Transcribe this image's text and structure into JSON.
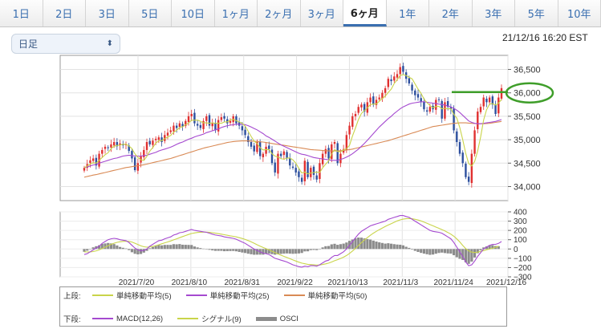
{
  "tabs": [
    {
      "label": "1日",
      "active": false
    },
    {
      "label": "2日",
      "active": false
    },
    {
      "label": "3日",
      "active": false
    },
    {
      "label": "5日",
      "active": false
    },
    {
      "label": "10日",
      "active": false
    },
    {
      "label": "1ヶ月",
      "active": false
    },
    {
      "label": "2ヶ月",
      "active": false
    },
    {
      "label": "3ヶ月",
      "active": false
    },
    {
      "label": "6ヶ月",
      "active": true
    },
    {
      "label": "1年",
      "active": false
    },
    {
      "label": "2年",
      "active": false
    },
    {
      "label": "3年",
      "active": false
    },
    {
      "label": "5年",
      "active": false
    },
    {
      "label": "10年",
      "active": false
    }
  ],
  "period_select": {
    "value": "日足",
    "icon": "updown-chevron-icon"
  },
  "timestamp": "21/12/16 16:20 EST",
  "chart_data": {
    "type": "candlestick",
    "price_axis": {
      "ticks": [
        "36,500",
        "36,000",
        "35,500",
        "35,000",
        "34,500",
        "34,000"
      ],
      "tick_values": [
        36500,
        36000,
        35500,
        35000,
        34500,
        34000
      ],
      "range": [
        33700,
        36800
      ]
    },
    "osc_axis": {
      "ticks": [
        "400",
        "300",
        "200",
        "100",
        "0",
        "−100",
        "−200",
        "−300"
      ],
      "tick_values": [
        400,
        300,
        200,
        100,
        0,
        -100,
        -200,
        -300
      ],
      "range": [
        -300,
        400
      ]
    },
    "x_labels": [
      "2021/7/20",
      "2021/8/10",
      "2021/8/31",
      "2021/9/22",
      "2021/10/13",
      "2021/11/3",
      "2021/11/24",
      "2021/12/16"
    ],
    "colors": {
      "up": "#e03030",
      "down": "#2d4f9e",
      "ma5": "#c9d44a",
      "ma25": "#a54ad0",
      "ma50": "#d98a55",
      "macd": "#a54ad0",
      "signal": "#c9d44a",
      "osci": "#8c8c8c",
      "highlight": "#3f9e2a"
    },
    "close": [
      34400,
      34480,
      34560,
      34600,
      34450,
      34700,
      34780,
      34850,
      34820,
      34900,
      34950,
      34860,
      34920,
      34880,
      34900,
      34760,
      34600,
      34350,
      34500,
      34650,
      34780,
      34950,
      34900,
      34980,
      35020,
      35050,
      34950,
      35100,
      35150,
      35200,
      35300,
      35250,
      35350,
      35280,
      35400,
      35500,
      35550,
      35350,
      35300,
      35250,
      35400,
      35500,
      35300,
      35350,
      35200,
      35420,
      35480,
      35450,
      35350,
      35400,
      35500,
      35350,
      35300,
      35200,
      35100,
      34950,
      34850,
      34750,
      34950,
      34650,
      34700,
      34850,
      34800,
      34500,
      34300,
      34700,
      34650,
      34750,
      34600,
      34450,
      34400,
      34300,
      34200,
      34100,
      34550,
      34200,
      34400,
      34250,
      34150,
      34500,
      34700,
      34800,
      34600,
      34900,
      34950,
      34500,
      34700,
      34800,
      35100,
      35300,
      35500,
      35550,
      35700,
      35750,
      35600,
      35800,
      35900,
      35750,
      35850,
      35900,
      36000,
      36100,
      36300,
      36250,
      36350,
      36400,
      36550,
      36450,
      36300,
      36200,
      36050,
      35950,
      35900,
      35800,
      35650,
      35600,
      35700,
      35650,
      35850,
      35850,
      35450,
      35800,
      35700,
      35650,
      35200,
      34950,
      34700,
      34500,
      34200,
      34100,
      34700,
      35200,
      35600,
      35700,
      35900,
      35800,
      35900,
      35750,
      35550,
      35900,
      36100
    ],
    "ma5": [
      34400,
      34440,
      34480,
      34510,
      34500,
      34560,
      34620,
      34680,
      34720,
      34810,
      34860,
      34876,
      34886,
      34902,
      34904,
      34864,
      34812,
      34700,
      34622,
      34572,
      34556,
      34646,
      34756,
      34832,
      34926,
      34980,
      34980,
      35024,
      35054,
      35090,
      35160,
      35200,
      35260,
      35276,
      35316,
      35356,
      35416,
      35416,
      35420,
      35390,
      35360,
      35360,
      35350,
      35360,
      35350,
      35354,
      35350,
      35380,
      35380,
      35420,
      35436,
      35410,
      35380,
      35350,
      35290,
      35180,
      35070,
      34970,
      34920,
      34830,
      34780,
      34790,
      34790,
      34700,
      34650,
      34630,
      34600,
      34580,
      34610,
      34610,
      34570,
      34500,
      34390,
      34290,
      34310,
      34270,
      34290,
      34300,
      34310,
      34300,
      34400,
      34480,
      34550,
      34700,
      34790,
      34750,
      34740,
      34780,
      34810,
      34880,
      35080,
      35250,
      35430,
      35560,
      35620,
      35680,
      35750,
      35760,
      35760,
      35820,
      35880,
      35930,
      36010,
      36080,
      36200,
      36280,
      36370,
      36390,
      36370,
      36330,
      36300,
      36190,
      36080,
      35990,
      35870,
      35790,
      35730,
      35680,
      35710,
      35710,
      35660,
      35670,
      35660,
      35660,
      35540,
      35460,
      35260,
      35000,
      34710,
      34490,
      34440,
      34540,
      34760,
      35060,
      35420,
      35640,
      35760,
      35770,
      35740,
      35780,
      35860
    ],
    "ma25": [
      34400,
      34420,
      34440,
      34460,
      34470,
      34500,
      34520,
      34540,
      34560,
      34580,
      34600,
      34610,
      34630,
      34650,
      34660,
      34670,
      34660,
      34650,
      34650,
      34650,
      34660,
      34670,
      34690,
      34710,
      34730,
      34760,
      34780,
      34800,
      34820,
      34840,
      34870,
      34900,
      34930,
      34950,
      34980,
      35010,
      35030,
      35060,
      35080,
      35100,
      35120,
      35150,
      35170,
      35190,
      35210,
      35230,
      35260,
      35280,
      35300,
      35310,
      35320,
      35330,
      35330,
      35330,
      35320,
      35300,
      35270,
      35240,
      35210,
      35170,
      35130,
      35080,
      35050,
      35010,
      34970,
      34930,
      34890,
      34860,
      34830,
      34800,
      34770,
      34740,
      34710,
      34690,
      34680,
      34660,
      34640,
      34620,
      34610,
      34600,
      34590,
      34580,
      34570,
      34560,
      34560,
      34560,
      34580,
      34600,
      34630,
      34660,
      34700,
      34750,
      34800,
      34860,
      34920,
      34990,
      35060,
      35130,
      35200,
      35270,
      35330,
      35390,
      35450,
      35500,
      35560,
      35610,
      35660,
      35700,
      35730,
      35760,
      35780,
      35790,
      35800,
      35810,
      35810,
      35800,
      35790,
      35780,
      35770,
      35760,
      35750,
      35740,
      35720,
      35700,
      35670,
      35630,
      35580,
      35520,
      35460,
      35400,
      35370,
      35350,
      35340,
      35340,
      35350,
      35360,
      35370,
      35380,
      35390,
      35410,
      35430
    ],
    "ma50": [
      34200,
      34215,
      34230,
      34245,
      34255,
      34270,
      34285,
      34300,
      34315,
      34330,
      34345,
      34360,
      34375,
      34390,
      34405,
      34415,
      34425,
      34435,
      34445,
      34455,
      34465,
      34480,
      34495,
      34510,
      34525,
      34540,
      34555,
      34570,
      34585,
      34600,
      34620,
      34640,
      34660,
      34680,
      34700,
      34720,
      34740,
      34760,
      34780,
      34800,
      34820,
      34835,
      34850,
      34865,
      34880,
      34895,
      34910,
      34925,
      34940,
      34950,
      34960,
      34965,
      34970,
      34975,
      34975,
      34975,
      34970,
      34965,
      34960,
      34955,
      34950,
      34940,
      34930,
      34920,
      34910,
      34900,
      34890,
      34880,
      34870,
      34860,
      34850,
      34840,
      34830,
      34820,
      34810,
      34800,
      34790,
      34785,
      34780,
      34775,
      34770,
      34765,
      34760,
      34760,
      34760,
      34760,
      34765,
      34770,
      34780,
      34790,
      34800,
      34815,
      34830,
      34845,
      34860,
      34875,
      34890,
      34905,
      34920,
      34935,
      34950,
      34965,
      34980,
      35000,
      35020,
      35040,
      35060,
      35080,
      35100,
      35120,
      35140,
      35160,
      35180,
      35200,
      35220,
      35240,
      35260,
      35280,
      35290,
      35300,
      35310,
      35320,
      35330,
      35340,
      35350,
      35355,
      35360,
      35360,
      35360,
      35355,
      35350,
      35345,
      35340,
      35340,
      35340,
      35345,
      35350,
      35360,
      35370,
      35380,
      35390
    ],
    "macd": [
      -60,
      -50,
      -30,
      -10,
      10,
      30,
      60,
      80,
      100,
      110,
      115,
      110,
      100,
      95,
      90,
      70,
      40,
      10,
      -10,
      -20,
      -15,
      0,
      30,
      50,
      70,
      90,
      95,
      110,
      120,
      130,
      150,
      160,
      175,
      180,
      190,
      200,
      210,
      200,
      195,
      190,
      185,
      180,
      170,
      160,
      150,
      145,
      140,
      130,
      125,
      120,
      115,
      105,
      90,
      75,
      60,
      40,
      20,
      0,
      -15,
      -30,
      -45,
      -50,
      -60,
      -80,
      -100,
      -110,
      -120,
      -130,
      -140,
      -155,
      -170,
      -180,
      -190,
      -195,
      -185,
      -190,
      -180,
      -180,
      -185,
      -170,
      -150,
      -130,
      -120,
      -90,
      -70,
      -70,
      -50,
      -30,
      0,
      40,
      80,
      120,
      160,
      190,
      210,
      230,
      250,
      260,
      270,
      280,
      290,
      300,
      320,
      330,
      340,
      350,
      360,
      360,
      350,
      340,
      320,
      300,
      280,
      260,
      240,
      220,
      200,
      190,
      185,
      180,
      170,
      150,
      130,
      110,
      70,
      20,
      -30,
      -80,
      -140,
      -180,
      -170,
      -130,
      -80,
      -40,
      0,
      20,
      40,
      50,
      50,
      60,
      80
    ],
    "signal": [
      -30,
      -32,
      -32,
      -28,
      -20,
      -10,
      5,
      20,
      35,
      50,
      62,
      72,
      78,
      82,
      84,
      82,
      75,
      62,
      48,
      34,
      24,
      20,
      22,
      28,
      36,
      46,
      56,
      66,
      76,
      86,
      98,
      110,
      122,
      134,
      145,
      156,
      167,
      173,
      178,
      180,
      181,
      181,
      179,
      175,
      170,
      165,
      160,
      154,
      148,
      142,
      136,
      130,
      122,
      113,
      103,
      91,
      77,
      62,
      46,
      31,
      16,
      3,
      -10,
      -24,
      -39,
      -53,
      -67,
      -80,
      -92,
      -105,
      -118,
      -130,
      -142,
      -152,
      -159,
      -165,
      -168,
      -170,
      -173,
      -172,
      -167,
      -160,
      -152,
      -140,
      -126,
      -115,
      -102,
      -88,
      -70,
      -48,
      -22,
      6,
      37,
      68,
      96,
      123,
      148,
      170,
      190,
      208,
      225,
      242,
      258,
      273,
      288,
      302,
      314,
      321,
      326,
      328,
      326,
      320,
      312,
      302,
      290,
      277,
      263,
      250,
      236,
      223,
      209,
      194,
      178,
      160,
      137,
      109,
      76,
      38,
      4,
      -20,
      -34,
      -38,
      -34,
      -26,
      -17,
      -8,
      0,
      8,
      18,
      30
    ],
    "osci_note": "MACD minus signal"
  },
  "legend": {
    "upper_label": "上段:",
    "lower_label": "下段:",
    "upper_items": [
      {
        "label": "単純移動平均(5)",
        "color": "#c9d44a"
      },
      {
        "label": "単純移動平均(25)",
        "color": "#a54ad0"
      },
      {
        "label": "単純移動平均(50)",
        "color": "#d98a55"
      }
    ],
    "lower_items": [
      {
        "label": "MACD(12,26)",
        "color": "#a54ad0"
      },
      {
        "label": "シグナル(9)",
        "color": "#c9d44a"
      },
      {
        "label": "OSCI",
        "color": "#8c8c8c"
      }
    ]
  }
}
